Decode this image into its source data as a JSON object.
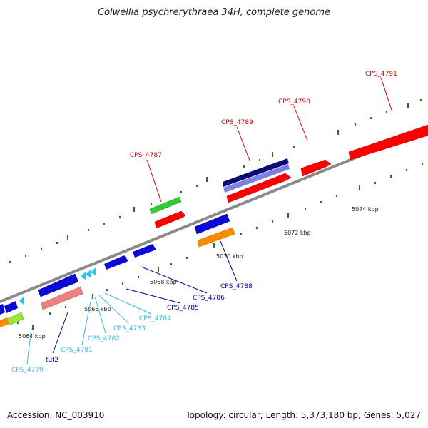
{
  "title": "Colwellia psychrerythraea 34H, complete genome",
  "footer": {
    "accession": "Accession: NC_003910",
    "stats": "Topology: circular; Length: 5,373,180 bp; Genes: 5,027"
  },
  "colors": {
    "backbone": "#8a8a8a",
    "tick": "#1f7a1f",
    "red": "#ff0000",
    "dark_blue": "#0b0b78",
    "blue": "#0a0ad8",
    "light_blue": "#28c4f0",
    "green": "#33cc33",
    "pink": "#f08080",
    "orange": "#ff8a00",
    "lime": "#99e633",
    "lavender": "#7f7fe0"
  },
  "ruler_labels": [
    "5064 kbp",
    "5066 kbp",
    "5068 kbp",
    "5070 kbp",
    "5072 kbp",
    "5074 kbp"
  ],
  "gene_labels": [
    {
      "text": "CPS_4787",
      "color": "#cc0000"
    },
    {
      "text": "CPS_4789",
      "color": "#cc0000"
    },
    {
      "text": "CPS_4790",
      "color": "#cc0000"
    },
    {
      "text": "CPS_4791",
      "color": "#cc0000"
    },
    {
      "text": "CPS_4788",
      "color": "#00008b"
    },
    {
      "text": "CPS_4786",
      "color": "#00008b"
    },
    {
      "text": "CPS_4785",
      "color": "#00008b"
    },
    {
      "text": "CPS_4784",
      "color": "#33bbdd"
    },
    {
      "text": "CPS_4783",
      "color": "#33bbdd"
    },
    {
      "text": "CPS_4782",
      "color": "#33bbdd"
    },
    {
      "text": "CPS_4781",
      "color": "#33bbdd"
    },
    {
      "text": "tuf2",
      "color": "#00008b"
    },
    {
      "text": "CPS_4779",
      "color": "#33bbdd"
    }
  ]
}
